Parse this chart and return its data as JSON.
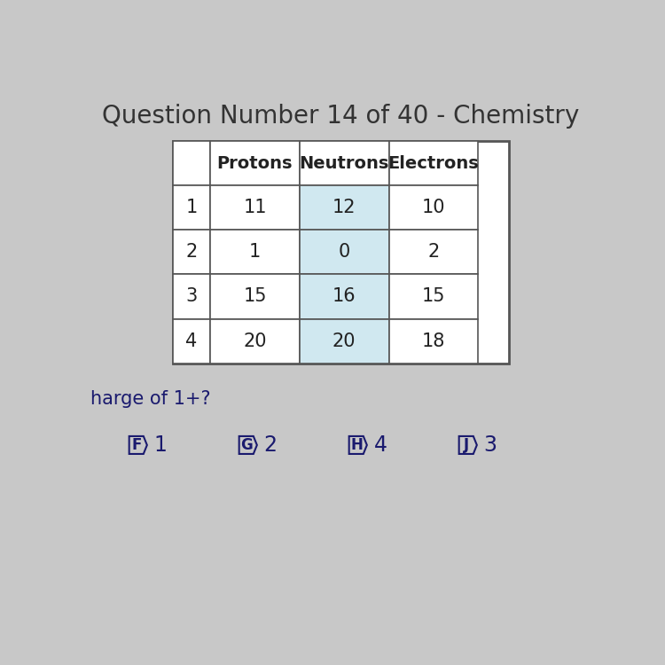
{
  "title": "Question Number 14 of 40 - Chemistry",
  "subtitle": "harge of 1+?",
  "col_headers": [
    "",
    "Protons",
    "Neutrons",
    "Electrons"
  ],
  "rows": [
    [
      "1",
      "11",
      "12",
      "10"
    ],
    [
      "2",
      "1",
      "0",
      "2"
    ],
    [
      "3",
      "15",
      "16",
      "15"
    ],
    [
      "4",
      "20",
      "20",
      "18"
    ]
  ],
  "answer_labels": [
    "F",
    "G",
    "H",
    "J"
  ],
  "answer_values": [
    "1",
    "2",
    "4",
    "3"
  ],
  "bg_color": "#c8c8c8",
  "table_bg_color": "#ffffff",
  "col_highlight_color": "#d0e8f0",
  "header_bg_color": "#ffffff",
  "title_color": "#333333",
  "text_color": "#222222",
  "answer_text_color": "#1a1a6e",
  "title_fontsize": 20,
  "header_fontsize": 14,
  "cell_fontsize": 15,
  "answer_fontsize": 17
}
